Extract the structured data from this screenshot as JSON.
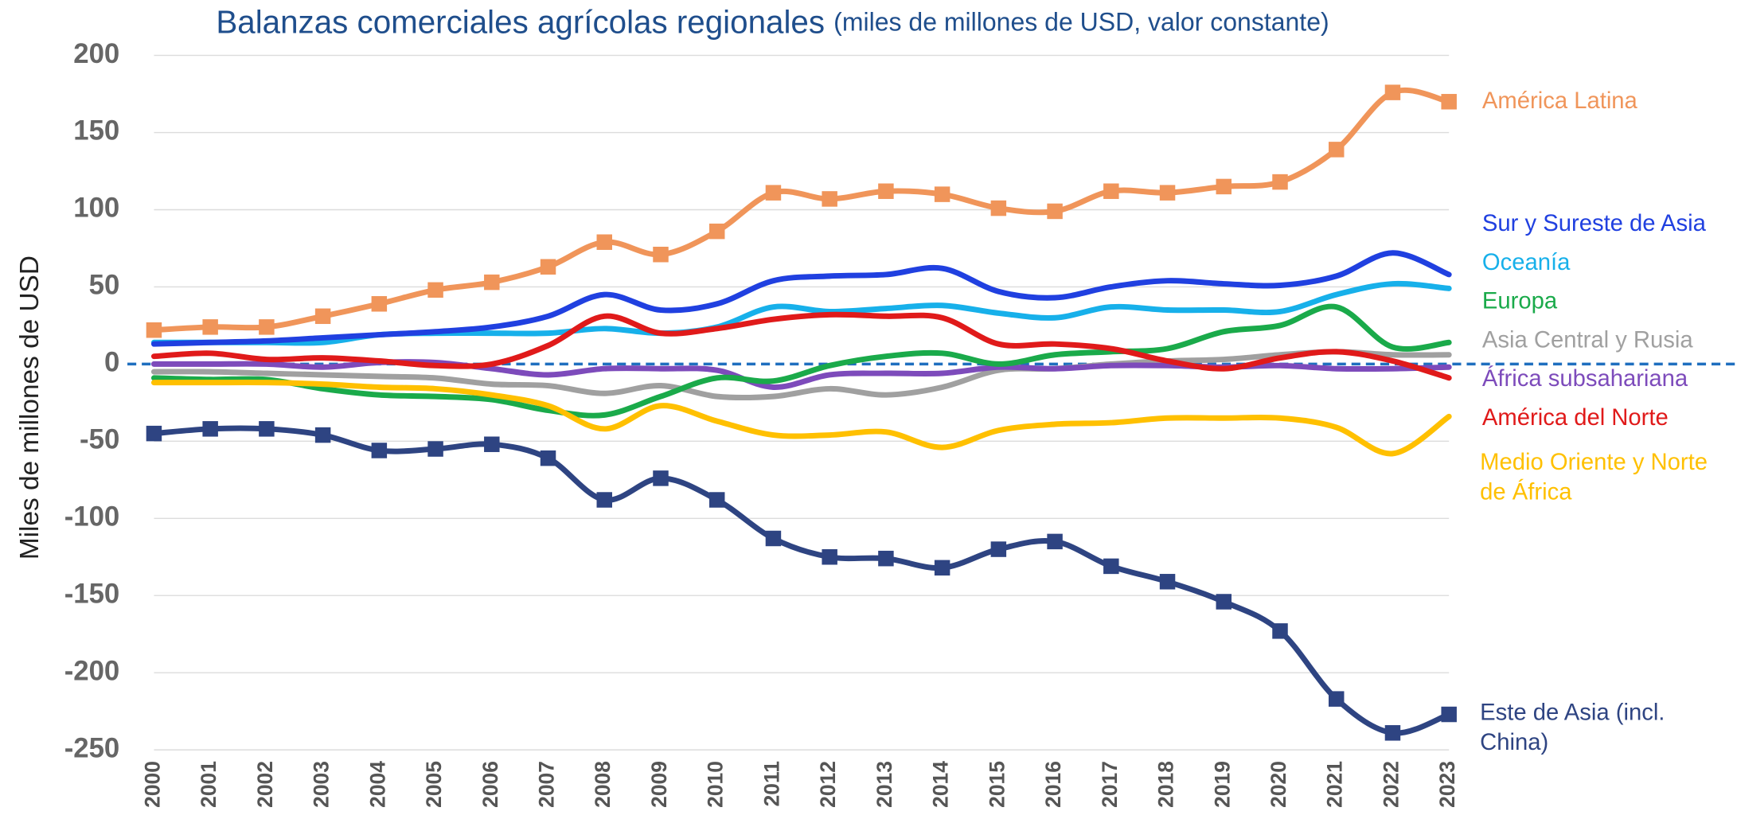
{
  "chart_data": {
    "type": "line",
    "title": "Balanzas comerciales agrícolas regionales",
    "subtitle": "(miles de millones de USD, valor constante)",
    "y_label": "Miles de millones de USD",
    "categories": [
      "2000",
      "2001",
      "2002",
      "2003",
      "2004",
      "2005",
      "2006",
      "2007",
      "2008",
      "2009",
      "2010",
      "2011",
      "2012",
      "2013",
      "2014",
      "2015",
      "2016",
      "2017",
      "2018",
      "2019",
      "2020",
      "2021",
      "2022",
      "2023"
    ],
    "ylim": [
      -250,
      200
    ],
    "yticks": [
      -250,
      -200,
      -150,
      -100,
      -50,
      0,
      50,
      100,
      150,
      200
    ],
    "grid": true,
    "zero_line": "dashed",
    "series": [
      {
        "name": "América Latina",
        "color": "#f0955a",
        "marker": "square",
        "values": [
          22,
          24,
          24,
          31,
          39,
          48,
          53,
          63,
          79,
          71,
          86,
          111,
          107,
          112,
          110,
          101,
          99,
          112,
          111,
          115,
          118,
          139,
          176,
          170
        ]
      },
      {
        "name": "Sur y Sureste de Asia",
        "color": "#2040e0",
        "values": [
          13,
          14,
          15,
          17,
          19,
          21,
          24,
          31,
          45,
          35,
          39,
          54,
          57,
          58,
          62,
          47,
          43,
          50,
          54,
          52,
          51,
          57,
          72,
          58
        ]
      },
      {
        "name": "Oceanía",
        "color": "#17b0ea",
        "values": [
          14,
          14,
          14,
          14,
          19,
          20,
          20,
          20,
          23,
          20,
          24,
          37,
          34,
          36,
          38,
          33,
          30,
          37,
          35,
          35,
          34,
          45,
          52,
          49
        ]
      },
      {
        "name": "Europa",
        "color": "#1aaa4a",
        "values": [
          -9,
          -10,
          -10,
          -16,
          -20,
          -21,
          -23,
          -30,
          -33,
          -21,
          -9,
          -11,
          -1,
          5,
          7,
          0,
          6,
          8,
          10,
          21,
          25,
          37,
          11,
          14
        ]
      },
      {
        "name": "Asia Central y Rusia",
        "color": "#a0a0a0",
        "values": [
          -5,
          -5,
          -6,
          -7,
          -8,
          -9,
          -13,
          -14,
          -19,
          -14,
          -21,
          -21,
          -16,
          -20,
          -15,
          -4,
          -3,
          0,
          2,
          3,
          6,
          8,
          6,
          6
        ]
      },
      {
        "name": "África subsahariana",
        "color": "#7d4bbb",
        "values": [
          0,
          0,
          0,
          -2,
          1,
          1,
          -3,
          -7,
          -3,
          -3,
          -4,
          -15,
          -7,
          -6,
          -6,
          -2,
          -3,
          -1,
          -1,
          -2,
          -1,
          -3,
          -3,
          -2
        ]
      },
      {
        "name": "América del Norte",
        "color": "#e01a1a",
        "values": [
          5,
          7,
          3,
          4,
          2,
          -1,
          0,
          12,
          31,
          20,
          23,
          29,
          32,
          31,
          30,
          13,
          13,
          10,
          2,
          -3,
          4,
          8,
          2,
          -9
        ]
      },
      {
        "name": "Medio Oriente y Norte de África",
        "color": "#ffc000",
        "values": [
          -12,
          -12,
          -12,
          -13,
          -15,
          -16,
          -20,
          -27,
          -42,
          -27,
          -37,
          -46,
          -46,
          -44,
          -54,
          -43,
          -39,
          -38,
          -35,
          -35,
          -35,
          -41,
          -58,
          -34
        ]
      },
      {
        "name": "Este de Asia (incl. China)",
        "color": "#2e4482",
        "marker": "square",
        "values": [
          -45,
          -42,
          -42,
          -46,
          -56,
          -55,
          -52,
          -61,
          -88,
          -74,
          -88,
          -113,
          -125,
          -126,
          -132,
          -120,
          -115,
          -131,
          -141,
          -154,
          -173,
          -217,
          -239,
          -227
        ]
      }
    ]
  }
}
